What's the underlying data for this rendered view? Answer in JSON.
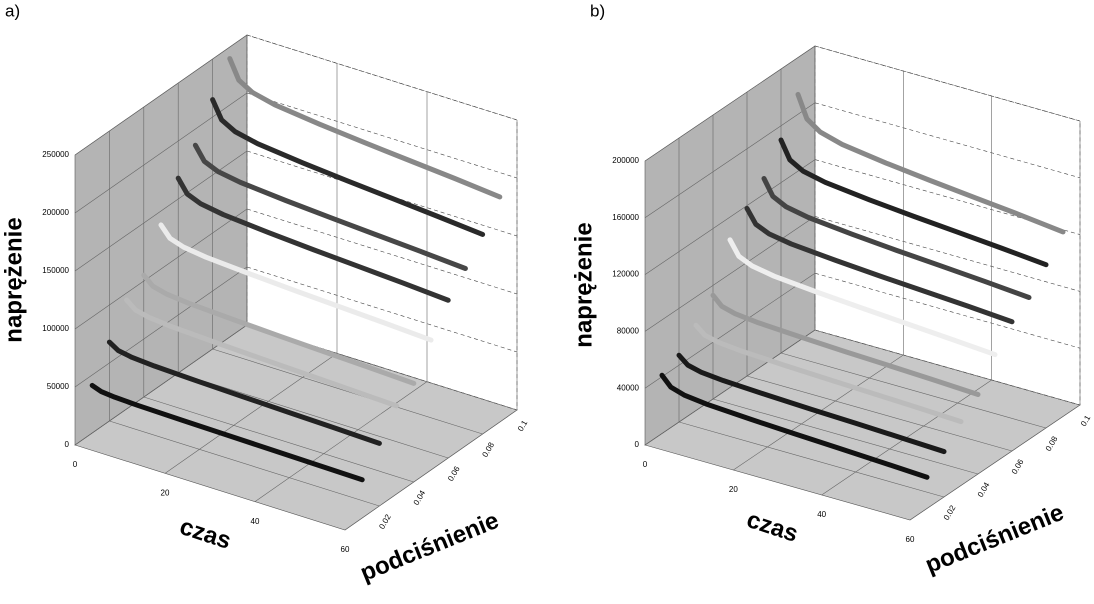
{
  "chart_data": [
    {
      "type": "line3d",
      "label": "a)",
      "xlabel": "czas",
      "ylabel": "podciśnienie",
      "zlabel": "naprężenie",
      "x": [
        0,
        2,
        5,
        10,
        20,
        30,
        40,
        50,
        60
      ],
      "xlim": [
        0,
        60
      ],
      "xticks": [
        0,
        20,
        40,
        60
      ],
      "ylim": [
        0,
        0.1
      ],
      "yticks": [
        0.02,
        0.04,
        0.06,
        0.08,
        0.1
      ],
      "zlim": [
        0,
        250000
      ],
      "zticks": [
        0,
        50000,
        100000,
        150000,
        200000,
        250000
      ],
      "grid": true,
      "series": [
        {
          "color": "#111111",
          "depth": 0.01,
          "values": [
            41000,
            38200,
            37000,
            36200,
            35400,
            34800,
            34200,
            33600,
            33000
          ]
        },
        {
          "color": "#222222",
          "depth": 0.02,
          "values": [
            68000,
            63100,
            61000,
            59600,
            58200,
            57100,
            56100,
            55100,
            54000
          ]
        },
        {
          "color": "#bbbbbb",
          "depth": 0.03,
          "values": [
            94000,
            87700,
            85000,
            83200,
            81400,
            80000,
            78700,
            77400,
            76000
          ]
        },
        {
          "color": "#aaaaaa",
          "depth": 0.04,
          "values": [
            105000,
            98000,
            95000,
            93000,
            91000,
            89400,
            88000,
            86600,
            85000
          ]
        },
        {
          "color": "#ebebeb",
          "depth": 0.05,
          "values": [
            138000,
            128900,
            125000,
            122400,
            119800,
            117700,
            115900,
            114100,
            112000
          ]
        },
        {
          "color": "#333333",
          "depth": 0.06,
          "values": [
            168000,
            156800,
            152000,
            148800,
            145600,
            143000,
            140800,
            138600,
            136000
          ]
        },
        {
          "color": "#474747",
          "depth": 0.07,
          "values": [
            186000,
            174500,
            169500,
            166200,
            162900,
            160300,
            157900,
            155600,
            153000
          ]
        },
        {
          "color": "#2a2a2a",
          "depth": 0.08,
          "values": [
            215000,
            200000,
            193500,
            189200,
            184900,
            181500,
            178500,
            175400,
            172000
          ]
        },
        {
          "color": "#888888",
          "depth": 0.09,
          "values": [
            240000,
            223900,
            217000,
            212400,
            207800,
            204100,
            200900,
            197700,
            194000
          ]
        }
      ]
    },
    {
      "type": "line3d",
      "label": "b)",
      "xlabel": "czas",
      "ylabel": "podciśnienie",
      "zlabel": "naprężenie",
      "x": [
        0,
        2,
        5,
        10,
        20,
        30,
        40,
        50,
        60
      ],
      "xlim": [
        0,
        60
      ],
      "xticks": [
        0,
        20,
        40,
        60
      ],
      "ylim": [
        0,
        0.1
      ],
      "yticks": [
        0.02,
        0.04,
        0.06,
        0.08,
        0.1
      ],
      "zlim": [
        0,
        200000
      ],
      "zticks": [
        0,
        40000,
        80000,
        120000,
        160000,
        200000
      ],
      "grid": true,
      "series": [
        {
          "color": "#111111",
          "depth": 0.01,
          "values": [
            41000,
            34400,
            31500,
            29600,
            27700,
            26200,
            24900,
            23500,
            22000
          ]
        },
        {
          "color": "#1a1a1a",
          "depth": 0.02,
          "values": [
            47000,
            41800,
            39500,
            38000,
            36500,
            35300,
            34300,
            33200,
            32000
          ]
        },
        {
          "color": "#bbbbbb",
          "depth": 0.03,
          "values": [
            60000,
            54800,
            52500,
            51000,
            49500,
            48300,
            47300,
            46200,
            45000
          ]
        },
        {
          "color": "#999999",
          "depth": 0.04,
          "values": [
            73000,
            67000,
            64500,
            62800,
            61100,
            59700,
            58600,
            57400,
            56000
          ]
        },
        {
          "color": "#eeeeee",
          "depth": 0.05,
          "values": [
            104000,
            94200,
            90000,
            87200,
            84400,
            82200,
            80200,
            78200,
            76000
          ]
        },
        {
          "color": "#333333",
          "depth": 0.06,
          "values": [
            118000,
            108600,
            104500,
            101800,
            99100,
            96900,
            95100,
            93200,
            91000
          ]
        },
        {
          "color": "#444444",
          "depth": 0.07,
          "values": [
            131000,
            120200,
            115500,
            112400,
            109300,
            106800,
            104700,
            102500,
            100000
          ]
        },
        {
          "color": "#222222",
          "depth": 0.08,
          "values": [
            150000,
            137800,
            132500,
            129000,
            125500,
            122700,
            120300,
            117800,
            115000
          ]
        },
        {
          "color": "#888888",
          "depth": 0.09,
          "values": [
            174000,
            158600,
            152000,
            147600,
            143200,
            139700,
            136600,
            133500,
            130000
          ]
        }
      ]
    }
  ]
}
